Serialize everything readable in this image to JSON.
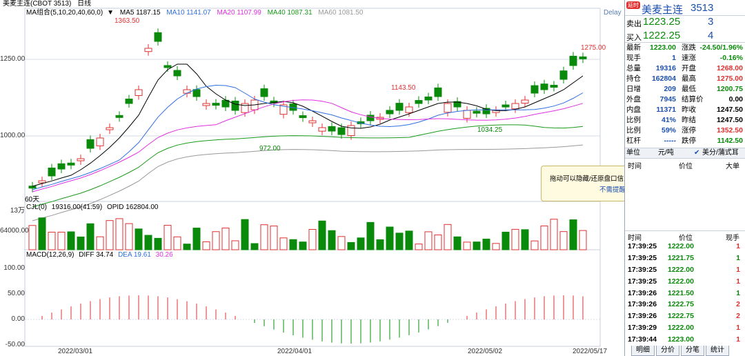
{
  "header": {
    "title": "美麦主连(CBOT 3513)",
    "period": "日线",
    "delay": "Delay"
  },
  "ma_legend": {
    "group": "MA组合(5,10,20,40,60,0)",
    "ma5": "MA5 1187.15",
    "ma10": "MA10 1141.07",
    "ma20": "MA20 1107.99",
    "ma40": "MA40 1087.31",
    "ma60": "MA60 1081.50"
  },
  "colors": {
    "up": "#e03030",
    "down": "#0a8a0a",
    "ma5": "#000000",
    "ma10": "#2f6fe0",
    "ma20": "#e030e0",
    "ma40": "#1a9a1a",
    "ma60": "#999999"
  },
  "price_axis": {
    "y1250": "1250.00",
    "y1000": "1000.00"
  },
  "price_annotations": {
    "high": "1363.50",
    "mid_high": "1143.50",
    "low1": "972.00",
    "low2": "1034.25",
    "last_high": "1275.00",
    "ma60_tag": "60天"
  },
  "volume_panel": {
    "label": "CJL(0)",
    "values": "19316.00(41:59)",
    "opid": "OPID 162804.00",
    "axis_top": "13万",
    "axis_mid": "64000.00"
  },
  "macd_panel": {
    "label": "MACD(12,26,9)",
    "diff": "DIFF 34.74",
    "dea": "DEA 19.61",
    "macd": "30.26",
    "ticks": [
      "100.00",
      "50.00",
      "0.00",
      "-50.00"
    ]
  },
  "dates": [
    "2022/03/01",
    "2022/04/01",
    "2022/05/02",
    "2022/05/17"
  ],
  "quote": {
    "badge": "延时",
    "name": "美麦主连",
    "code": "3513",
    "ask_label": "卖出",
    "ask_price": "1223.25",
    "ask_qty": "3",
    "bid_label": "买入",
    "bid_price": "1222.25",
    "bid_qty": "4"
  },
  "stats_left": [
    {
      "label": "最新",
      "value": "1223.00",
      "color": "#0a8a0a"
    },
    {
      "label": "现手",
      "value": "1",
      "color": "#1a4fb0"
    },
    {
      "label": "总量",
      "value": "19316",
      "color": "#1a4fb0"
    },
    {
      "label": "持仓",
      "value": "162804",
      "color": "#1a4fb0"
    },
    {
      "label": "日增",
      "value": "209",
      "color": "#1a4fb0"
    },
    {
      "label": "外盘",
      "value": "7945",
      "color": "#1a4fb0"
    },
    {
      "label": "内盘",
      "value": "11371",
      "color": "#1a4fb0"
    },
    {
      "label": "比例",
      "value": "41%",
      "color": "#1a4fb0"
    },
    {
      "label": "比例",
      "value": "59%",
      "color": "#1a4fb0"
    },
    {
      "label": "杠杆",
      "value": "-----",
      "color": "#1a4fb0"
    }
  ],
  "stats_right": [
    {
      "label": "涨跌",
      "value": "-24.50/1.96%",
      "color": "#0a8a0a"
    },
    {
      "label": "速涨",
      "value": "-0.16%",
      "color": "#0a8a0a"
    },
    {
      "label": "开盘",
      "value": "1268.00",
      "color": "#e03030"
    },
    {
      "label": "最高",
      "value": "1275.00",
      "color": "#e03030"
    },
    {
      "label": "最低",
      "value": "1200.75",
      "color": "#0a8a0a"
    },
    {
      "label": "结算价",
      "value": "0.00",
      "color": "#000000"
    },
    {
      "label": "昨收",
      "value": "1247.50",
      "color": "#000000"
    },
    {
      "label": "昨结",
      "value": "1247.50",
      "color": "#000000"
    },
    {
      "label": "涨停",
      "value": "1352.50",
      "color": "#e03030"
    },
    {
      "label": "跌停",
      "value": "1142.50",
      "color": "#0a8a0a"
    }
  ],
  "unit_row": {
    "label": "单位",
    "unit1": "元/吨",
    "unit2": "美分/蒲式耳"
  },
  "depth_header": {
    "time": "时间",
    "price": "价位",
    "size": "大单"
  },
  "tooltip": {
    "text": "拖动可以隐藏/还原盘口信息",
    "link": "不需提醒"
  },
  "trades_header": {
    "time": "时间",
    "price": "价位",
    "qty": "现手"
  },
  "trades": [
    {
      "time": "17:39:25",
      "price": "1222.00",
      "qty": "1",
      "color": "#e03030"
    },
    {
      "time": "17:39:25",
      "price": "1221.75",
      "qty": "1",
      "color": "#0a8a0a"
    },
    {
      "time": "17:39:25",
      "price": "1222.00",
      "qty": "1",
      "color": "#e03030"
    },
    {
      "time": "17:39:25",
      "price": "1222.00",
      "qty": "1",
      "color": "#e03030"
    },
    {
      "time": "17:39:26",
      "price": "1221.50",
      "qty": "1",
      "color": "#0a8a0a"
    },
    {
      "time": "17:39:26",
      "price": "1222.75",
      "qty": "2",
      "color": "#e03030"
    },
    {
      "time": "17:39:26",
      "price": "1222.75",
      "qty": "2",
      "color": "#e03030"
    },
    {
      "time": "17:39:29",
      "price": "1222.00",
      "qty": "1",
      "color": "#e03030"
    },
    {
      "time": "17:39:44",
      "price": "1223.00",
      "qty": "1",
      "color": "#e03030"
    }
  ],
  "bottom_tabs": [
    "明细",
    "分价",
    "分笔",
    "统计"
  ]
}
